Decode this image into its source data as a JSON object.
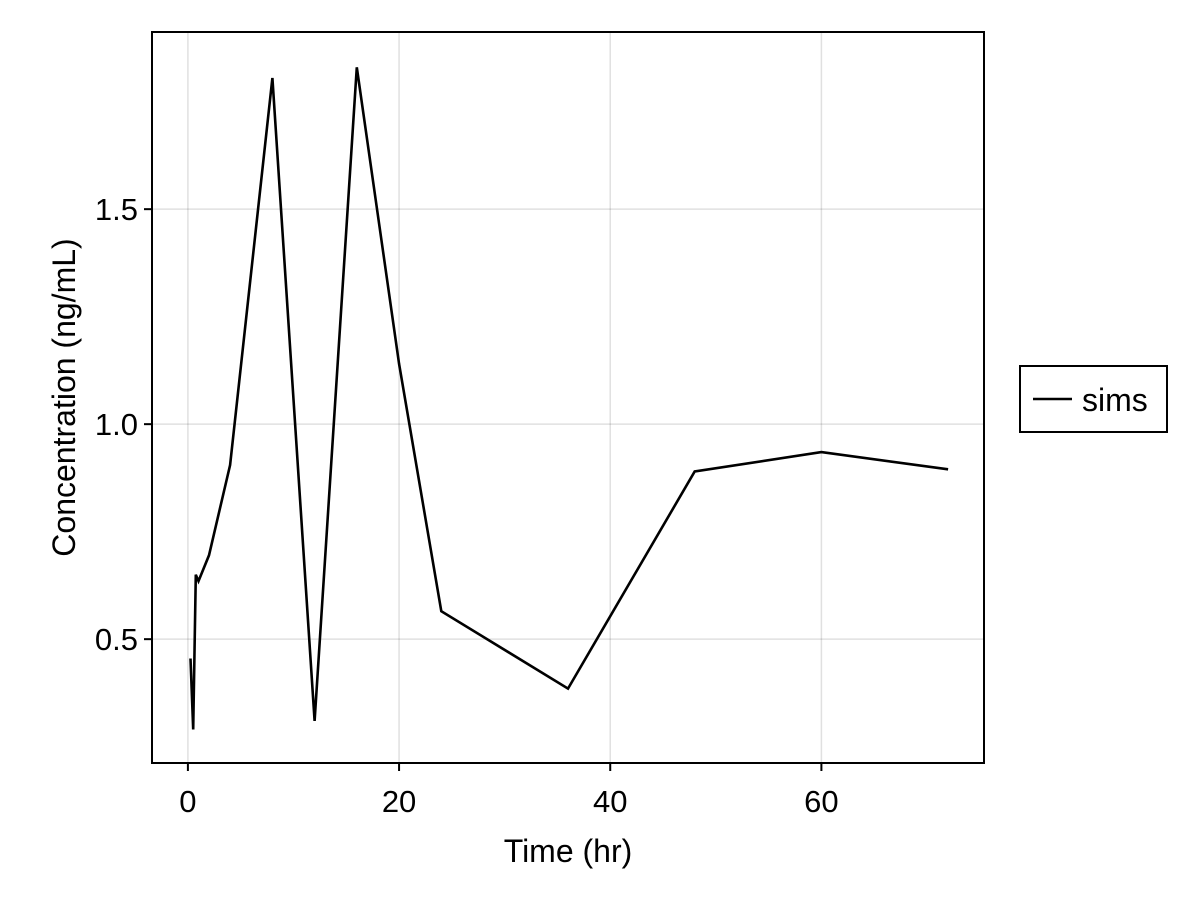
{
  "chart_data": {
    "type": "line",
    "title": "",
    "xlabel": "Time (hr)",
    "ylabel": "Concentration (ng/mL)",
    "xlim": [
      -3.4,
      75.4
    ],
    "ylim": [
      0.212,
      1.912
    ],
    "xticks": [
      0,
      20,
      40,
      60
    ],
    "xtick_labels": [
      "0",
      "20",
      "40",
      "60"
    ],
    "yticks": [
      0.5,
      1.0,
      1.5
    ],
    "ytick_labels": [
      "0.5",
      "1.0",
      "1.5"
    ],
    "grid": true,
    "legend": {
      "position": "right",
      "entries": [
        "sims"
      ]
    },
    "series": [
      {
        "name": "sims",
        "color": "#000000",
        "x": [
          0.25,
          0.5,
          0.75,
          1,
          2,
          4,
          8,
          12,
          16,
          20,
          24,
          36,
          48,
          60,
          72
        ],
        "y": [
          0.455,
          0.29,
          0.65,
          0.635,
          0.695,
          0.905,
          1.805,
          0.31,
          1.83,
          1.14,
          0.565,
          0.385,
          0.89,
          0.935,
          0.895
        ]
      }
    ]
  }
}
